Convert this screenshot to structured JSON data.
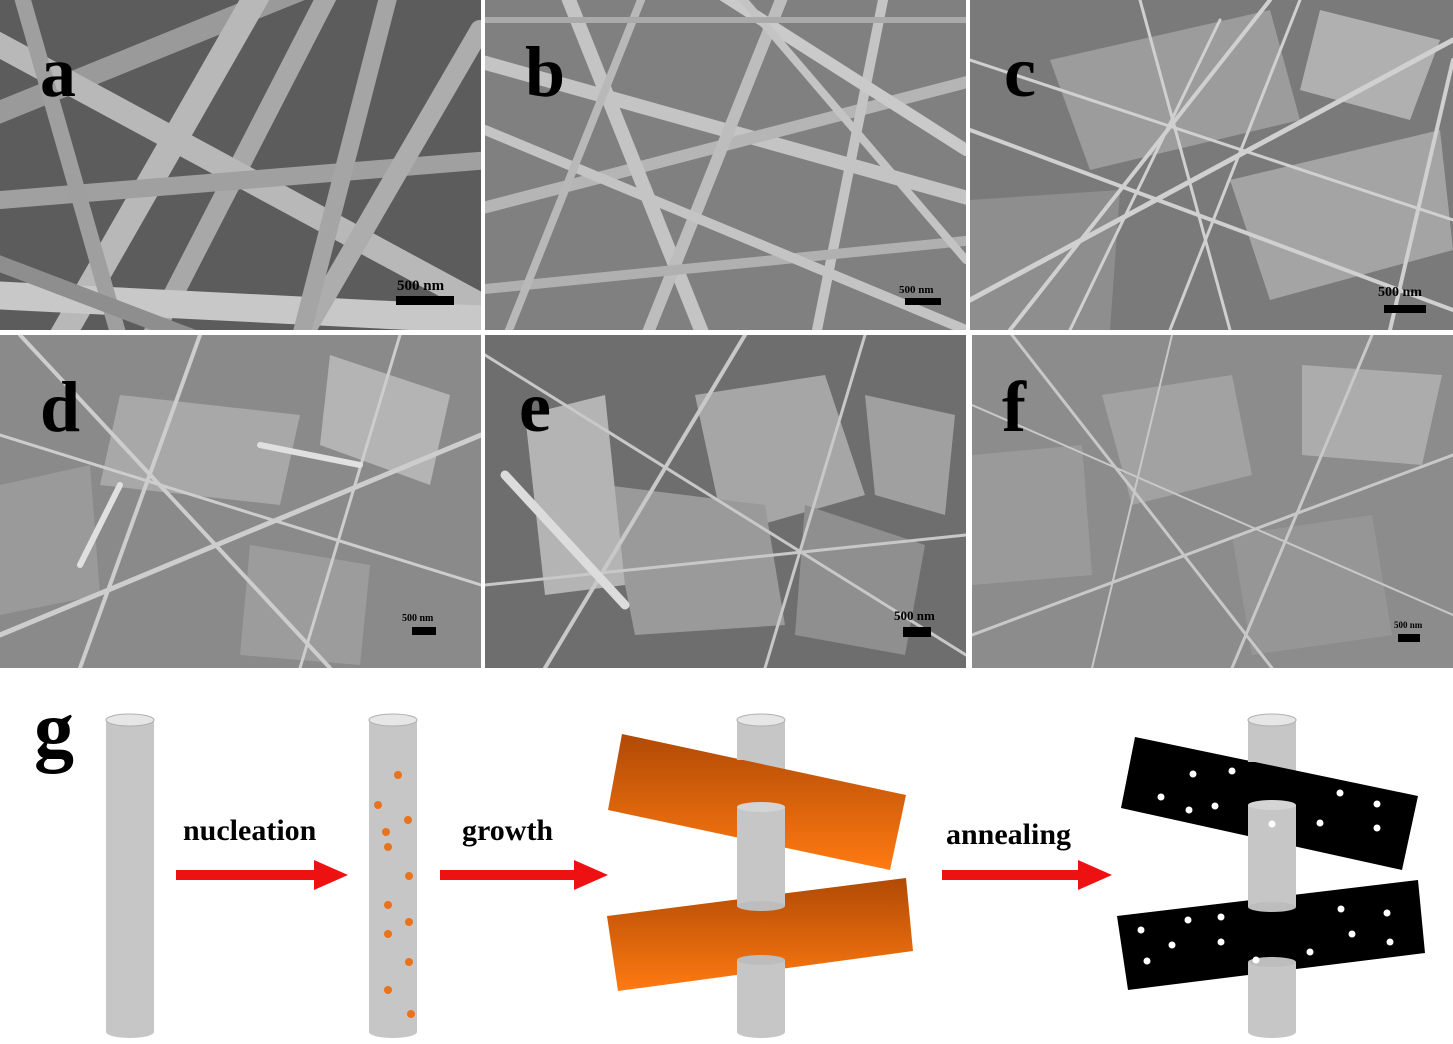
{
  "panels": [
    {
      "id": "a",
      "label": "a",
      "scale_text": "500 nm"
    },
    {
      "id": "b",
      "label": "b",
      "scale_text": "500 nm"
    },
    {
      "id": "c",
      "label": "c",
      "scale_text": "500 nm"
    },
    {
      "id": "d",
      "label": "d",
      "scale_text": "500 nm"
    },
    {
      "id": "e",
      "label": "e",
      "scale_text": "500 nm"
    },
    {
      "id": "f",
      "label": "f",
      "scale_text": "500 nm"
    }
  ],
  "schematic": {
    "label": "g",
    "steps": [
      "nucleation",
      "growth",
      "annealing"
    ],
    "colors": {
      "rod": "#c6c6c6",
      "rod_top": "#e6e6e6",
      "arrow": "#ee1111",
      "nuclei": "#e8731c",
      "sheet_orange_dark": "#b04a05",
      "sheet_orange_light": "#ff7a12",
      "sheet_black": "#000000",
      "pores": "#ffffff"
    }
  }
}
